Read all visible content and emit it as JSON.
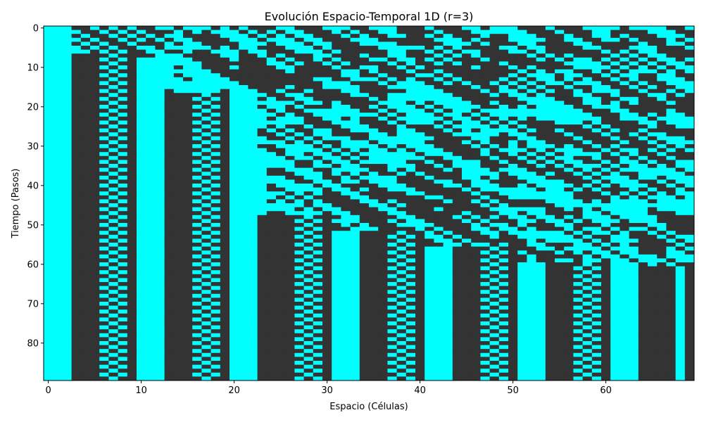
{
  "chart_data": {
    "type": "heatmap",
    "title": "Evolución Espacio-Temporal 1D (r=3)",
    "xlabel": "Espacio (Células)",
    "ylabel": "Tiempo (Pasos)",
    "x_ticks": [
      0,
      10,
      20,
      30,
      40,
      50,
      60
    ],
    "y_ticks": [
      0,
      10,
      20,
      30,
      40,
      50,
      60,
      70,
      80
    ],
    "xlim": [
      -0.5,
      69.5
    ],
    "ylim": [
      89.5,
      -0.5
    ],
    "n_cells": 70,
    "n_steps": 90,
    "colors": {
      "on": "#00ffff",
      "off": "#333333"
    },
    "rule_radius": 3,
    "stable_bands_from_step_60": [
      {
        "cells": [
          0,
          2
        ],
        "state": "on"
      },
      {
        "cells": [
          3,
          5
        ],
        "state": "off"
      },
      {
        "cells": [
          6,
          8
        ],
        "state": "alternating"
      },
      {
        "cells": [
          9,
          9
        ],
        "state": "off"
      },
      {
        "cells": [
          10,
          12
        ],
        "state": "on"
      },
      {
        "cells": [
          13,
          15
        ],
        "state": "off"
      },
      {
        "cells": [
          16,
          18
        ],
        "state": "alternating"
      },
      {
        "cells": [
          19,
          19
        ],
        "state": "off"
      },
      {
        "cells": [
          20,
          22
        ],
        "state": "on"
      },
      {
        "cells": [
          23,
          26
        ],
        "state": "off"
      },
      {
        "cells": [
          27,
          29
        ],
        "state": "alternating"
      },
      {
        "cells": [
          30,
          30
        ],
        "state": "off"
      },
      {
        "cells": [
          31,
          33
        ],
        "state": "on"
      },
      {
        "cells": [
          34,
          36
        ],
        "state": "off"
      },
      {
        "cells": [
          37,
          39
        ],
        "state": "alternating"
      },
      {
        "cells": [
          40,
          40
        ],
        "state": "off"
      },
      {
        "cells": [
          41,
          43
        ],
        "state": "on"
      },
      {
        "cells": [
          44,
          46
        ],
        "state": "off"
      },
      {
        "cells": [
          47,
          49
        ],
        "state": "alternating"
      },
      {
        "cells": [
          50,
          50
        ],
        "state": "off"
      },
      {
        "cells": [
          51,
          53
        ],
        "state": "on"
      },
      {
        "cells": [
          54,
          56
        ],
        "state": "off"
      },
      {
        "cells": [
          57,
          59
        ],
        "state": "alternating"
      },
      {
        "cells": [
          60,
          60
        ],
        "state": "off"
      },
      {
        "cells": [
          61,
          63
        ],
        "state": "on"
      },
      {
        "cells": [
          64,
          67
        ],
        "state": "off"
      },
      {
        "cells": [
          68,
          68
        ],
        "state": "on"
      },
      {
        "cells": [
          69,
          69
        ],
        "state": "off"
      }
    ]
  }
}
